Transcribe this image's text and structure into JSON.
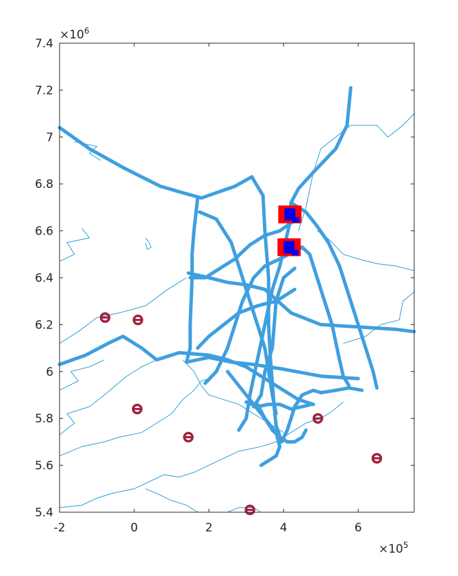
{
  "chart_data": {
    "type": "map-plot",
    "title": "",
    "xlabel": "",
    "ylabel": "",
    "x_multiplier": "×10",
    "x_exponent": "5",
    "y_multiplier": "×10",
    "y_exponent": "6",
    "xlim": [
      -2,
      7.5
    ],
    "ylim": [
      5.4,
      7.4
    ],
    "x_ticks": [
      -2,
      0,
      2,
      4,
      6
    ],
    "x_tick_labels": [
      "-2",
      "0",
      "2",
      "4",
      "6"
    ],
    "y_ticks": [
      5.4,
      5.6,
      5.8,
      6.0,
      6.2,
      6.4,
      6.6,
      6.8,
      7.0,
      7.2,
      7.4
    ],
    "y_tick_labels": [
      "5.4",
      "5.6",
      "5.8",
      "6",
      "6.2",
      "6.4",
      "6.6",
      "6.8",
      "7",
      "7.2",
      "7.4"
    ],
    "grid": false,
    "colors": {
      "route": "#3f9fdf",
      "contour": "#2a9fd8",
      "marker": "#a0213c",
      "target_outer": "#ff0000",
      "target_inner": "#0000ee",
      "axis": "#262626"
    },
    "routes": [
      [
        [
          -2.0,
          7.04
        ],
        [
          -1.2,
          6.95
        ],
        [
          -0.3,
          6.87
        ],
        [
          0.7,
          6.79
        ],
        [
          1.35,
          6.76
        ],
        [
          1.8,
          6.74
        ],
        [
          2.7,
          6.79
        ],
        [
          3.15,
          6.83
        ]
      ],
      [
        [
          3.15,
          6.83
        ],
        [
          3.3,
          6.79
        ],
        [
          3.45,
          6.75
        ],
        [
          3.5,
          6.6
        ],
        [
          3.55,
          6.5
        ],
        [
          3.6,
          6.4
        ],
        [
          3.6,
          6.2
        ],
        [
          3.65,
          6.05
        ],
        [
          3.7,
          5.95
        ],
        [
          3.75,
          5.85
        ],
        [
          3.8,
          5.77
        ]
      ],
      [
        [
          3.8,
          5.77
        ],
        [
          3.95,
          5.7
        ],
        [
          4.1,
          5.75
        ],
        [
          4.2,
          5.8
        ],
        [
          4.3,
          5.85
        ],
        [
          4.5,
          5.9
        ],
        [
          4.8,
          5.92
        ],
        [
          5.0,
          5.91
        ]
      ],
      [
        [
          5.0,
          5.91
        ],
        [
          5.4,
          5.92
        ],
        [
          5.75,
          5.93
        ],
        [
          6.1,
          5.92
        ]
      ],
      [
        [
          1.7,
          6.74
        ],
        [
          1.6,
          6.6
        ],
        [
          1.55,
          6.5
        ],
        [
          1.55,
          6.4
        ],
        [
          1.5,
          6.2
        ],
        [
          1.5,
          6.1
        ],
        [
          1.4,
          6.04
        ]
      ],
      [
        [
          1.45,
          6.42
        ],
        [
          2.0,
          6.4
        ],
        [
          2.5,
          6.38
        ],
        [
          3.0,
          6.37
        ],
        [
          3.5,
          6.35
        ],
        [
          4.2,
          6.25
        ],
        [
          5.0,
          6.2
        ],
        [
          6.0,
          6.19
        ],
        [
          7.0,
          6.18
        ],
        [
          7.5,
          6.17
        ]
      ],
      [
        [
          -2.0,
          6.03
        ],
        [
          -1.3,
          6.07
        ],
        [
          -0.7,
          6.12
        ],
        [
          -0.3,
          6.15
        ],
        [
          0.2,
          6.1
        ],
        [
          0.6,
          6.05
        ],
        [
          1.2,
          6.08
        ],
        [
          2.0,
          6.07
        ],
        [
          2.5,
          6.05
        ],
        [
          3.0,
          6.02
        ],
        [
          3.5,
          5.97
        ],
        [
          4.0,
          5.92
        ],
        [
          4.4,
          5.88
        ],
        [
          4.8,
          5.86
        ]
      ],
      [
        [
          1.4,
          6.04
        ],
        [
          2.0,
          6.06
        ],
        [
          2.6,
          6.04
        ],
        [
          3.2,
          6.03
        ],
        [
          4.0,
          6.01
        ],
        [
          5.0,
          5.98
        ],
        [
          6.0,
          5.97
        ]
      ],
      [
        [
          4.3,
          6.35
        ],
        [
          3.8,
          6.3
        ],
        [
          3.3,
          6.28
        ],
        [
          2.8,
          6.25
        ],
        [
          2.4,
          6.2
        ],
        [
          2.0,
          6.15
        ],
        [
          1.7,
          6.1
        ]
      ],
      [
        [
          4.5,
          6.53
        ],
        [
          3.9,
          6.48
        ],
        [
          3.5,
          6.45
        ],
        [
          3.2,
          6.4
        ],
        [
          2.9,
          6.3
        ],
        [
          2.7,
          6.2
        ],
        [
          2.5,
          6.1
        ],
        [
          2.2,
          6.0
        ],
        [
          1.9,
          5.95
        ]
      ],
      [
        [
          4.35,
          6.65
        ],
        [
          3.9,
          6.6
        ],
        [
          3.5,
          6.58
        ],
        [
          3.1,
          6.54
        ],
        [
          2.7,
          6.48
        ],
        [
          2.3,
          6.44
        ],
        [
          1.9,
          6.4
        ],
        [
          1.5,
          6.4
        ]
      ],
      [
        [
          1.75,
          6.68
        ],
        [
          2.2,
          6.65
        ],
        [
          2.6,
          6.55
        ],
        [
          2.9,
          6.4
        ],
        [
          3.1,
          6.3
        ],
        [
          3.3,
          6.2
        ],
        [
          3.5,
          6.1
        ],
        [
          3.7,
          5.9
        ],
        [
          3.8,
          5.82
        ]
      ],
      [
        [
          5.8,
          7.21
        ],
        [
          5.7,
          7.05
        ],
        [
          5.4,
          6.95
        ],
        [
          5.1,
          6.9
        ],
        [
          4.8,
          6.85
        ],
        [
          4.4,
          6.78
        ],
        [
          4.2,
          6.72
        ],
        [
          4.15,
          6.62
        ],
        [
          4.0,
          6.52
        ],
        [
          3.9,
          6.45
        ],
        [
          3.7,
          6.35
        ],
        [
          3.5,
          6.2
        ],
        [
          3.3,
          6.05
        ],
        [
          3.1,
          5.9
        ],
        [
          3.0,
          5.8
        ],
        [
          2.8,
          5.75
        ]
      ],
      [
        [
          4.5,
          6.53
        ],
        [
          4.7,
          6.5
        ],
        [
          4.9,
          6.4
        ],
        [
          5.1,
          6.3
        ],
        [
          5.3,
          6.2
        ],
        [
          5.5,
          6.05
        ],
        [
          5.6,
          5.98
        ],
        [
          5.75,
          5.94
        ]
      ],
      [
        [
          4.2,
          6.72
        ],
        [
          4.6,
          6.68
        ],
        [
          4.9,
          6.62
        ],
        [
          5.2,
          6.55
        ],
        [
          5.5,
          6.45
        ],
        [
          5.8,
          6.3
        ],
        [
          6.1,
          6.15
        ],
        [
          6.4,
          6.0
        ],
        [
          6.5,
          5.93
        ]
      ],
      [
        [
          3.3,
          5.86
        ],
        [
          3.5,
          5.8
        ],
        [
          3.7,
          5.75
        ],
        [
          3.9,
          5.72
        ],
        [
          4.1,
          5.7
        ],
        [
          4.3,
          5.7
        ],
        [
          4.5,
          5.72
        ],
        [
          4.6,
          5.75
        ]
      ],
      [
        [
          2.5,
          6.0
        ],
        [
          2.7,
          5.96
        ],
        [
          3.0,
          5.9
        ],
        [
          3.2,
          5.86
        ],
        [
          3.4,
          5.82
        ],
        [
          3.6,
          5.78
        ],
        [
          3.8,
          5.74
        ],
        [
          3.9,
          5.68
        ],
        [
          3.8,
          5.64
        ],
        [
          3.6,
          5.62
        ],
        [
          3.4,
          5.6
        ]
      ],
      [
        [
          3.0,
          5.87
        ],
        [
          3.3,
          5.85
        ],
        [
          3.6,
          5.86
        ],
        [
          3.9,
          5.86
        ],
        [
          4.2,
          5.84
        ],
        [
          4.5,
          5.85
        ],
        [
          4.75,
          5.86
        ]
      ],
      [
        [
          4.3,
          6.44
        ],
        [
          4.0,
          6.4
        ],
        [
          3.8,
          6.3
        ],
        [
          3.7,
          6.1
        ],
        [
          3.5,
          6.0
        ],
        [
          3.4,
          5.9
        ],
        [
          3.2,
          5.85
        ]
      ]
    ],
    "contours": [
      [
        [
          -2.0,
          6.12
        ],
        [
          -1.5,
          6.17
        ],
        [
          -1.0,
          6.23
        ],
        [
          -0.4,
          6.25
        ],
        [
          0.3,
          6.28
        ],
        [
          0.9,
          6.35
        ],
        [
          1.4,
          6.4
        ]
      ],
      [
        [
          -2.0,
          6.47
        ],
        [
          -1.6,
          6.5
        ],
        [
          -1.8,
          6.55
        ],
        [
          -1.2,
          6.57
        ],
        [
          -1.4,
          6.61
        ]
      ],
      [
        [
          -1.6,
          6.98
        ],
        [
          -1.0,
          6.96
        ],
        [
          -1.2,
          6.93
        ],
        [
          -0.9,
          6.9
        ]
      ],
      [
        [
          0.3,
          6.57
        ],
        [
          0.4,
          6.55
        ],
        [
          0.45,
          6.53
        ],
        [
          0.35,
          6.52
        ],
        [
          0.3,
          6.55
        ]
      ],
      [
        [
          -2.0,
          5.92
        ],
        [
          -1.5,
          5.96
        ],
        [
          -1.7,
          6.0
        ],
        [
          -1.2,
          6.02
        ],
        [
          -0.8,
          6.05
        ]
      ],
      [
        [
          -2.0,
          5.73
        ],
        [
          -1.6,
          5.78
        ],
        [
          -1.8,
          5.82
        ],
        [
          -1.2,
          5.85
        ],
        [
          -0.8,
          5.9
        ],
        [
          -0.5,
          5.94
        ],
        [
          -0.2,
          5.98
        ],
        [
          0.2,
          6.02
        ],
        [
          0.6,
          6.05
        ]
      ],
      [
        [
          -2.0,
          5.64
        ],
        [
          -1.4,
          5.68
        ],
        [
          -0.8,
          5.7
        ],
        [
          -0.4,
          5.72
        ],
        [
          0.2,
          5.74
        ],
        [
          0.6,
          5.78
        ],
        [
          1.0,
          5.82
        ],
        [
          1.3,
          5.88
        ],
        [
          1.6,
          5.92
        ],
        [
          1.8,
          5.96
        ],
        [
          2.0,
          5.97
        ]
      ],
      [
        [
          -2.0,
          5.42
        ],
        [
          -1.4,
          5.43
        ],
        [
          -1.0,
          5.46
        ],
        [
          -0.6,
          5.48
        ],
        [
          0.0,
          5.5
        ],
        [
          0.4,
          5.53
        ],
        [
          0.8,
          5.56
        ],
        [
          1.2,
          5.55
        ],
        [
          1.6,
          5.57
        ],
        [
          2.0,
          5.6
        ],
        [
          2.4,
          5.63
        ],
        [
          2.8,
          5.66
        ],
        [
          3.4,
          5.68
        ],
        [
          3.8,
          5.7
        ],
        [
          4.2,
          5.74
        ],
        [
          4.6,
          5.78
        ],
        [
          5.0,
          5.8
        ],
        [
          5.3,
          5.83
        ],
        [
          5.6,
          5.87
        ]
      ],
      [
        [
          0.3,
          5.5
        ],
        [
          0.6,
          5.48
        ],
        [
          1.0,
          5.45
        ],
        [
          1.4,
          5.43
        ],
        [
          1.7,
          5.4
        ]
      ],
      [
        [
          -0.4,
          5.4
        ],
        [
          -0.05,
          5.4
        ]
      ],
      [
        [
          2.5,
          5.4
        ],
        [
          2.8,
          5.42
        ],
        [
          3.2,
          5.42
        ],
        [
          3.4,
          5.4
        ]
      ],
      [
        [
          4.4,
          6.6
        ],
        [
          4.6,
          6.7
        ],
        [
          4.8,
          6.85
        ],
        [
          5.0,
          6.95
        ],
        [
          5.4,
          7.0
        ],
        [
          5.8,
          7.05
        ],
        [
          6.2,
          7.05
        ],
        [
          6.5,
          7.05
        ],
        [
          6.8,
          7.0
        ],
        [
          7.2,
          7.05
        ],
        [
          7.5,
          7.1
        ]
      ],
      [
        [
          7.5,
          6.43
        ],
        [
          7.0,
          6.45
        ],
        [
          6.5,
          6.46
        ],
        [
          6.0,
          6.48
        ],
        [
          5.6,
          6.5
        ],
        [
          5.3,
          6.55
        ],
        [
          5.1,
          6.58
        ],
        [
          4.9,
          6.6
        ]
      ],
      [
        [
          7.5,
          6.34
        ],
        [
          7.2,
          6.3
        ],
        [
          7.1,
          6.22
        ],
        [
          6.6,
          6.2
        ],
        [
          6.2,
          6.15
        ],
        [
          5.6,
          6.12
        ]
      ],
      [
        [
          1.3,
          6.05
        ],
        [
          1.6,
          6.0
        ],
        [
          1.8,
          5.94
        ],
        [
          2.0,
          5.9
        ],
        [
          2.4,
          5.88
        ],
        [
          2.8,
          5.86
        ],
        [
          3.2,
          5.82
        ],
        [
          3.6,
          5.78
        ],
        [
          4.0,
          5.74
        ]
      ]
    ],
    "markers": [
      [
        -0.78,
        6.23
      ],
      [
        0.1,
        6.22
      ],
      [
        0.08,
        5.84
      ],
      [
        1.45,
        5.72
      ],
      [
        3.1,
        5.41
      ],
      [
        4.92,
        5.8
      ],
      [
        6.5,
        5.63
      ]
    ],
    "targets": [
      [
        4.17,
        6.67
      ],
      [
        4.15,
        6.53
      ]
    ]
  }
}
